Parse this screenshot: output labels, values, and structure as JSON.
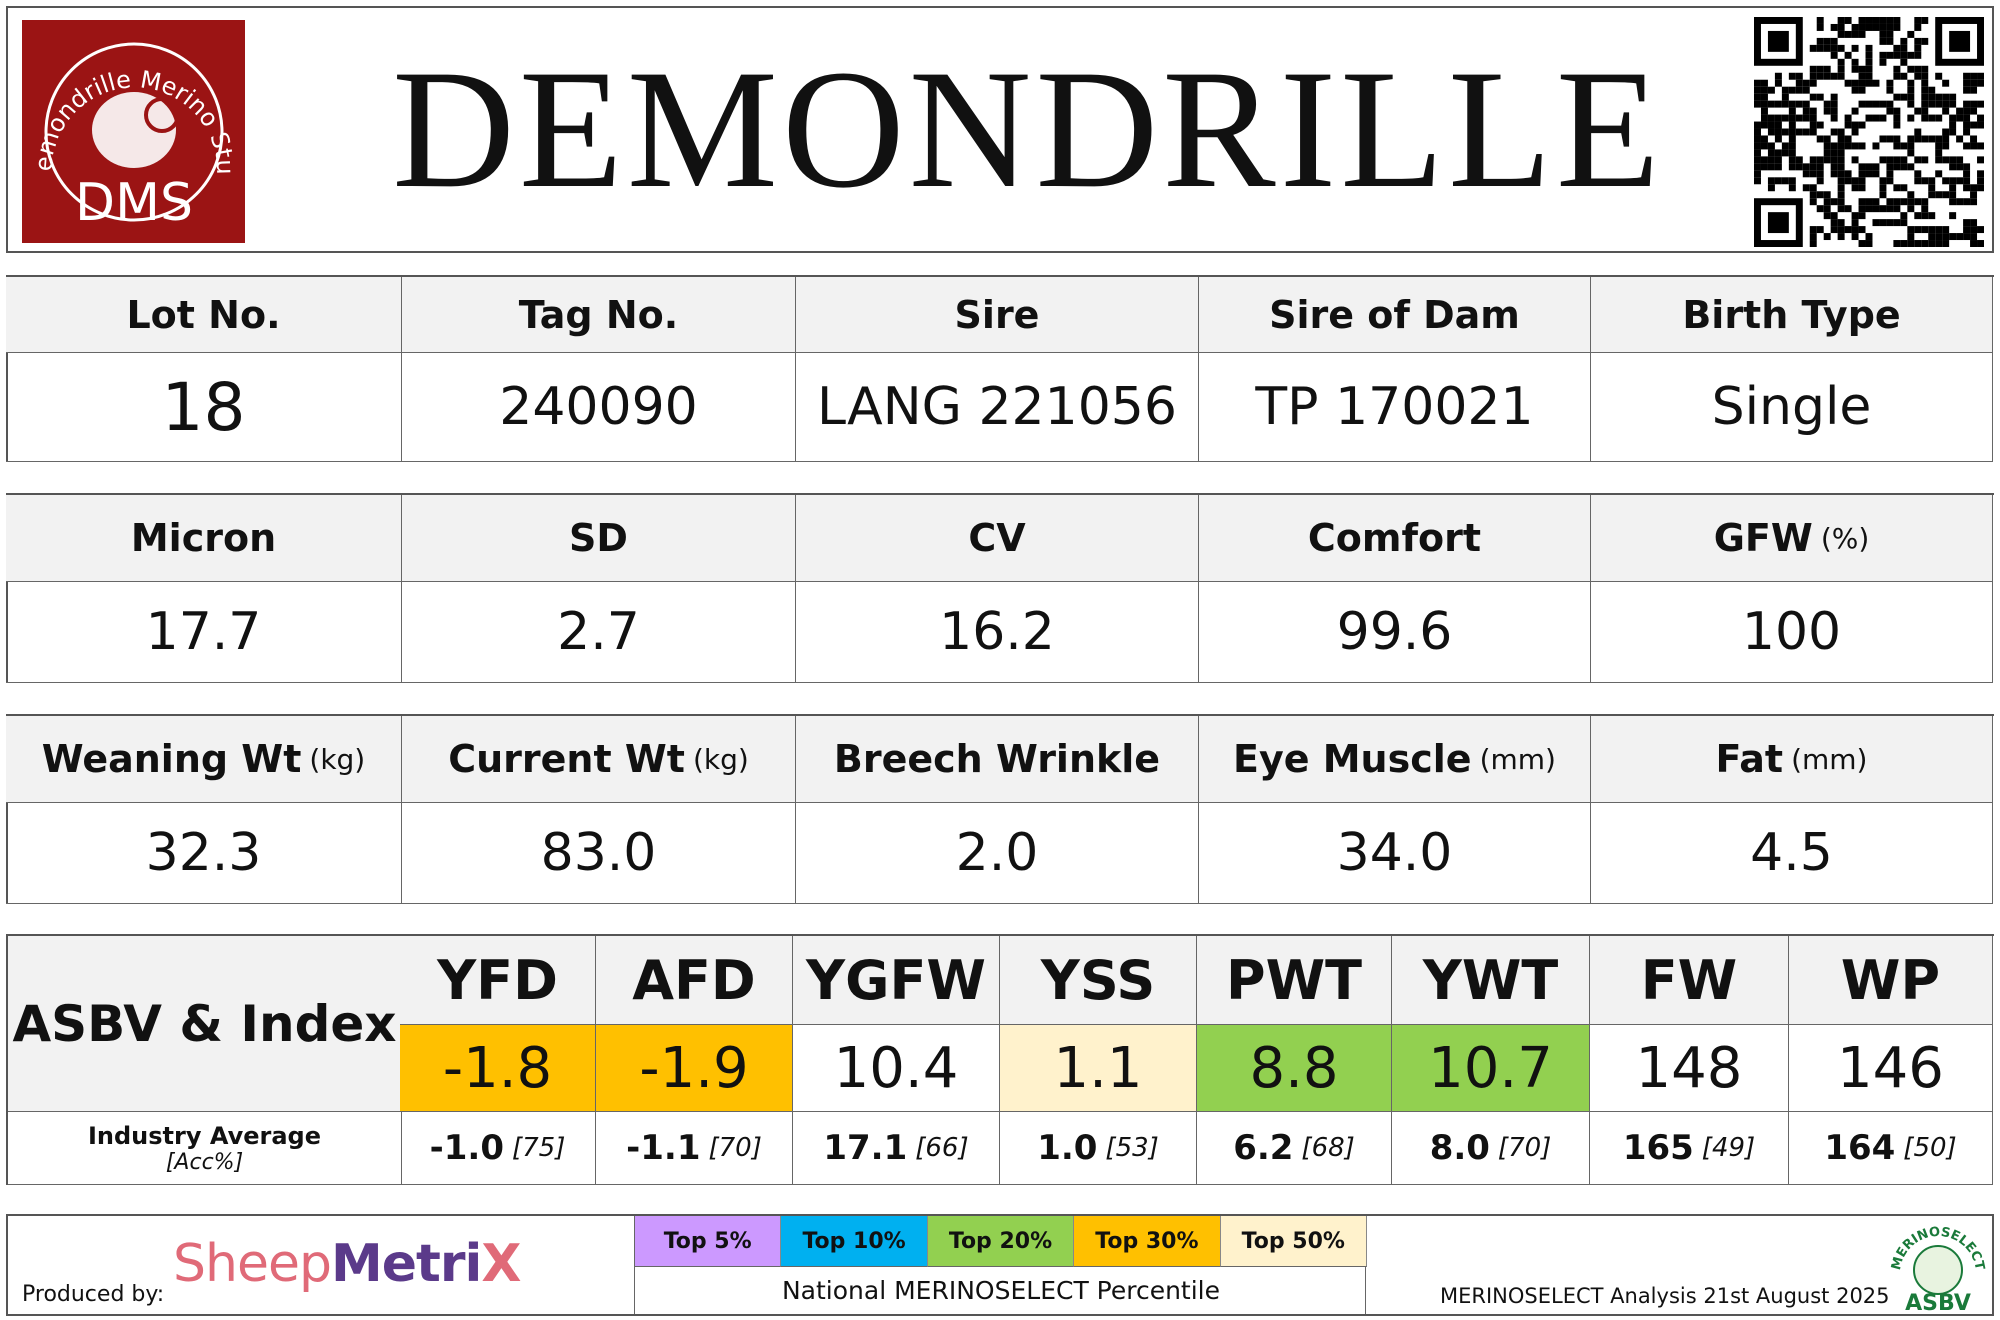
{
  "header": {
    "logo": {
      "arc_text": "Demondrille Merino Stud",
      "initials": "DMS"
    },
    "title": "DEMONDRILLE"
  },
  "details": {
    "headers": [
      {
        "label": "Lot No."
      },
      {
        "label": "Tag No."
      },
      {
        "label": "Sire"
      },
      {
        "label": "Sire of Dam"
      },
      {
        "label": "Birth Type"
      }
    ],
    "values": [
      "18",
      "240090",
      "LANG 221056",
      "TP 170021",
      "Single"
    ]
  },
  "wool": {
    "headers": [
      {
        "label": "Micron"
      },
      {
        "label": "SD"
      },
      {
        "label": "CV"
      },
      {
        "label": "Comfort"
      },
      {
        "label": "GFW",
        "unit": "(%)"
      }
    ],
    "values": [
      "17.7",
      "2.7",
      "16.2",
      "99.6",
      "100"
    ]
  },
  "body": {
    "headers": [
      {
        "label": "Weaning Wt",
        "unit": "(kg)"
      },
      {
        "label": "Current Wt",
        "unit": "(kg)"
      },
      {
        "label": "Breech Wrinkle"
      },
      {
        "label": "Eye Muscle",
        "unit": "(mm)"
      },
      {
        "label": "Fat",
        "unit": "(mm)"
      }
    ],
    "values": [
      "32.3",
      "83.0",
      "2.0",
      "34.0",
      "4.5"
    ]
  },
  "asbv": {
    "label": "ASBV & Index",
    "traits": [
      "YFD",
      "AFD",
      "YGFW",
      "YSS",
      "PWT",
      "YWT",
      "FW",
      "WP"
    ],
    "values": [
      "-1.8",
      "-1.9",
      "10.4",
      "1.1",
      "8.8",
      "10.7",
      "148",
      "146"
    ],
    "highlight": [
      "#ffc000",
      "#ffc000",
      null,
      "#fff2cc",
      "#92d050",
      "#92d050",
      null,
      null
    ],
    "average_label": "Industry Average",
    "accuracy_label": "[Acc%]",
    "averages": [
      {
        "value": "-1.0",
        "acc": "[75]"
      },
      {
        "value": "-1.1",
        "acc": "[70]"
      },
      {
        "value": "17.1",
        "acc": "[66]"
      },
      {
        "value": "1.0",
        "acc": "[53]"
      },
      {
        "value": "6.2",
        "acc": "[68]"
      },
      {
        "value": "8.0",
        "acc": "[70]"
      },
      {
        "value": "165",
        "acc": "[49]"
      },
      {
        "value": "164",
        "acc": "[50]"
      }
    ]
  },
  "footer": {
    "produced_by": "Produced by:",
    "brand": {
      "part1": "Sheep",
      "part2": "Metri",
      "part3": "X"
    },
    "legend": [
      {
        "label": "Top 5%",
        "color": "#cc99ff"
      },
      {
        "label": "Top 10%",
        "color": "#00b0f0"
      },
      {
        "label": "Top 20%",
        "color": "#92d050"
      },
      {
        "label": "Top 30%",
        "color": "#ffc000"
      },
      {
        "label": "Top 50%",
        "color": "#fff2cc"
      }
    ],
    "legend_caption": "National MERINOSELECT Percentile",
    "analysis": "MERINOSELECT Analysis 21st August 2025",
    "badge": {
      "arc_text": "MERINOSELECT",
      "label": "ASBV"
    }
  }
}
